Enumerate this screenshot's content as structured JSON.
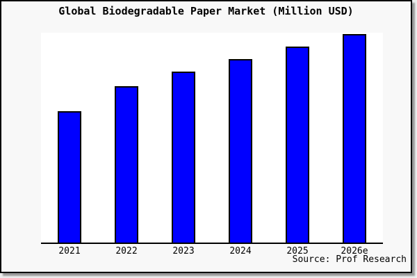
{
  "source_caption": "Source: Prof Research",
  "colors": {
    "bar_fill": "#0000ff",
    "bar_border": "#000000",
    "axis": "#000000",
    "frame_border": "#000000",
    "figure_bg": "#f8f8f8",
    "plot_bg": "#ffffff",
    "page_bg": "#efefef",
    "shadow": "#999999"
  },
  "chart_data": {
    "type": "bar",
    "title": "Global Biodegradable Paper Market (Million USD)",
    "categories": [
      "2021",
      "2022",
      "2023",
      "2024",
      "2025",
      "2026e"
    ],
    "values": [
      63,
      75,
      82,
      88,
      94,
      100
    ],
    "xlabel": "",
    "ylabel": "",
    "ylim": [
      0,
      100
    ],
    "value_note": "No y-axis ticks or gridlines shown; values are relative bar heights normalized to tallest bar (2026e = 100).",
    "grid": false,
    "legend": false,
    "bar_color": "#0000ff"
  }
}
